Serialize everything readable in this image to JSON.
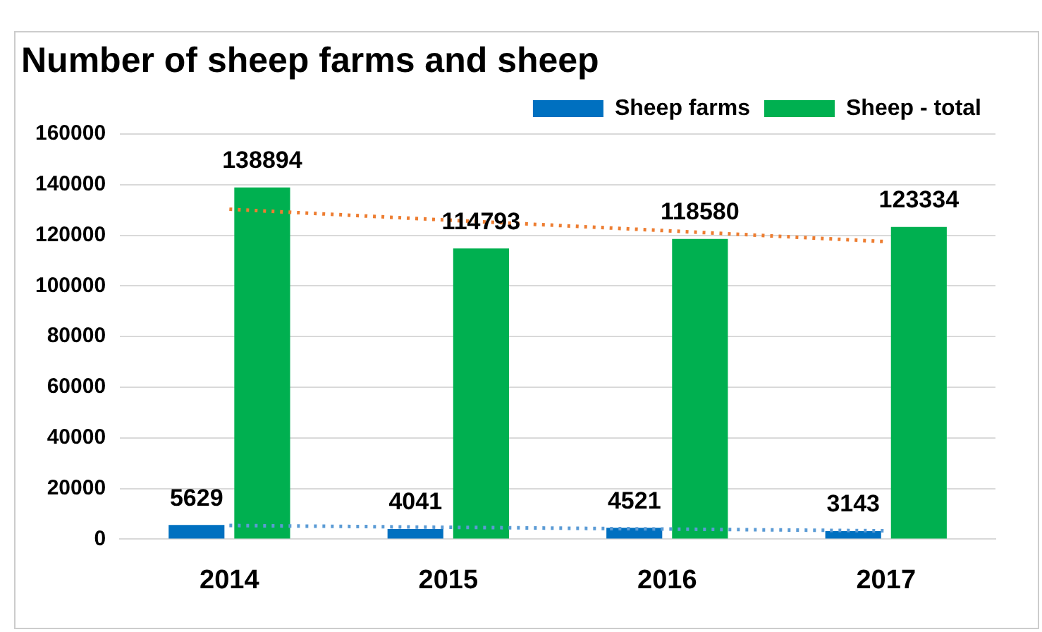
{
  "chart_data": {
    "type": "bar",
    "title": "Number of sheep farms and sheep",
    "categories": [
      "2014",
      "2015",
      "2016",
      "2017"
    ],
    "series": [
      {
        "name": "Sheep farms",
        "color": "#0070c0",
        "values": [
          5629,
          4041,
          4521,
          3143
        ],
        "value_labels": [
          "5629",
          "4041",
          "4521",
          "3143"
        ]
      },
      {
        "name": "Sheep - total",
        "color": "#00b050",
        "values": [
          138894,
          114793,
          118580,
          123334
        ],
        "value_labels": [
          "138894",
          "114793",
          "118580",
          "123334"
        ]
      },
      {
        "type": "line",
        "color": "#5b9bd5",
        "line_style": "dotted",
        "values": [
          5400,
          4700,
          4000,
          3300
        ]
      },
      {
        "type": "line",
        "color": "#ed7d31",
        "line_style": "dotted",
        "values": [
          130300,
          126000,
          121800,
          117500
        ]
      }
    ],
    "ylim": [
      0,
      160000
    ],
    "yticks": [
      0,
      20000,
      40000,
      60000,
      80000,
      100000,
      120000,
      140000,
      160000
    ],
    "grid": "y",
    "legend": "top right",
    "marker": "none"
  }
}
